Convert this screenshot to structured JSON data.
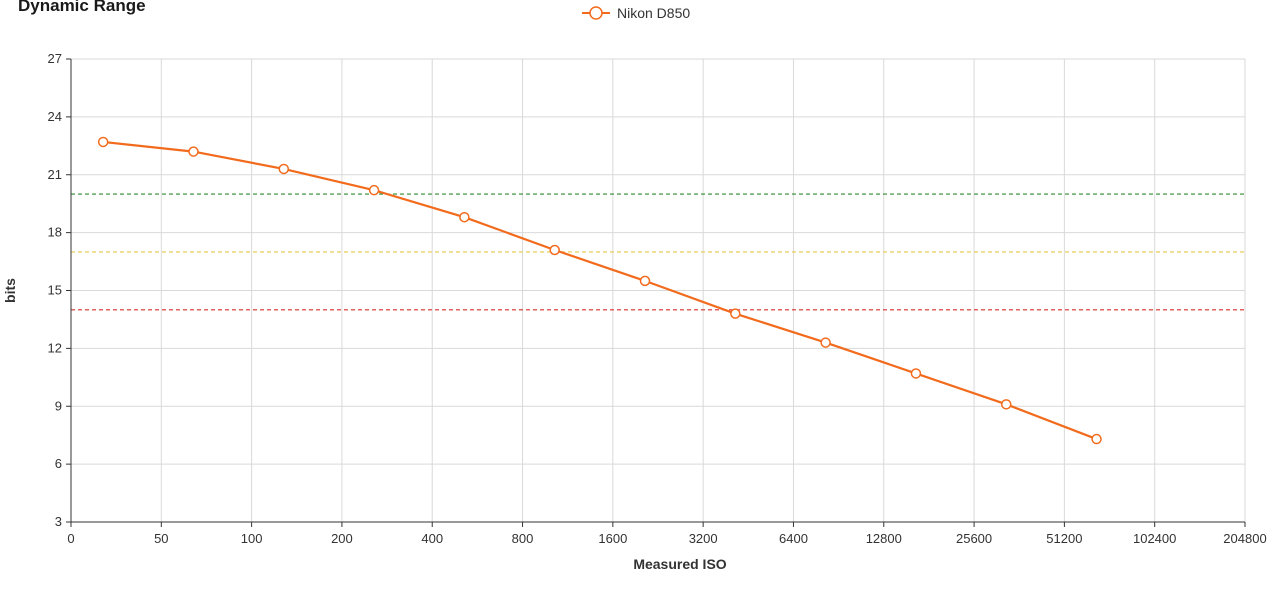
{
  "chart_data": {
    "type": "line",
    "title": "Dynamic Range",
    "xlabel": "Measured ISO",
    "ylabel": "bits",
    "x_scale": "log2",
    "x_ticks": [
      "0",
      "50",
      "100",
      "200",
      "400",
      "800",
      "1600",
      "3200",
      "6400",
      "12800",
      "25600",
      "51200",
      "102400",
      "204800"
    ],
    "y_ticks": [
      3,
      6,
      9,
      12,
      15,
      18,
      21,
      24,
      27
    ],
    "ylim": [
      3,
      27
    ],
    "grid": true,
    "legend_position": "top-center",
    "reference_lines": [
      {
        "y": 20,
        "color": "#2e8b2e"
      },
      {
        "y": 17,
        "color": "#e8c84a"
      },
      {
        "y": 14,
        "color": "#d92e2e"
      }
    ],
    "series": [
      {
        "name": "Nikon D850",
        "color": "#f26b1d",
        "x": [
          32,
          64,
          128,
          256,
          512,
          1024,
          2048,
          4096,
          8192,
          16384,
          32768,
          65536
        ],
        "values": [
          22.7,
          22.2,
          21.3,
          20.2,
          18.8,
          17.1,
          15.5,
          13.8,
          12.3,
          10.7,
          9.1,
          7.3
        ]
      }
    ]
  }
}
